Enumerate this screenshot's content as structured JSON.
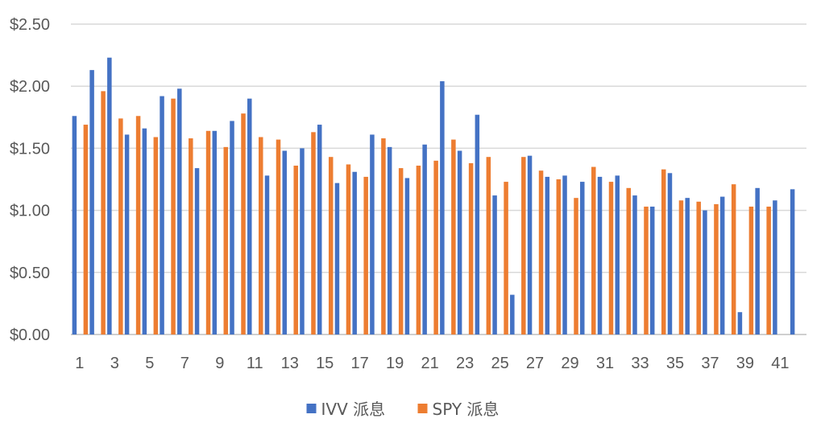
{
  "chart_data": {
    "type": "bar",
    "categories": [
      "1",
      "2",
      "3",
      "4",
      "5",
      "6",
      "7",
      "8",
      "9",
      "10",
      "11",
      "12",
      "13",
      "14",
      "15",
      "16",
      "17",
      "18",
      "19",
      "20",
      "21",
      "22",
      "23",
      "24",
      "25",
      "26",
      "27",
      "28",
      "29",
      "30",
      "31",
      "32",
      "33",
      "34",
      "35",
      "36",
      "37",
      "38",
      "39",
      "40",
      "41",
      "42"
    ],
    "x_tick_labels": [
      "1",
      "3",
      "5",
      "7",
      "9",
      "11",
      "13",
      "15",
      "17",
      "19",
      "21",
      "23",
      "25",
      "27",
      "29",
      "31",
      "33",
      "35",
      "37",
      "39",
      "41"
    ],
    "y_tick_labels": [
      "$0.00",
      "$0.50",
      "$1.00",
      "$1.50",
      "$2.00",
      "$2.50"
    ],
    "ylim": [
      0,
      2.5
    ],
    "grid": true,
    "legend_position": "bottom",
    "series": [
      {
        "name": "IVV 派息",
        "color": "#4472c4",
        "values": [
          1.76,
          2.13,
          2.23,
          1.61,
          1.66,
          1.92,
          1.98,
          1.34,
          1.64,
          1.72,
          1.9,
          1.28,
          1.48,
          1.5,
          1.69,
          1.22,
          1.31,
          1.61,
          1.51,
          1.26,
          1.53,
          2.04,
          1.48,
          1.77,
          1.12,
          0.32,
          1.44,
          1.27,
          1.28,
          1.23,
          1.27,
          1.28,
          1.12,
          1.03,
          1.3,
          1.1,
          1.0,
          1.11,
          0.18,
          1.18,
          1.08,
          1.17
        ]
      },
      {
        "name": "SPY 派息",
        "color": "#ed7d31",
        "values": [
          1.69,
          1.96,
          1.74,
          1.76,
          1.59,
          1.9,
          1.58,
          1.64,
          1.51,
          1.78,
          1.59,
          1.57,
          1.36,
          1.63,
          1.43,
          1.37,
          1.27,
          1.58,
          1.34,
          1.36,
          1.4,
          1.57,
          1.38,
          1.43,
          1.23,
          1.43,
          1.32,
          1.25,
          1.1,
          1.35,
          1.23,
          1.18,
          1.03,
          1.33,
          1.08,
          1.07,
          1.05,
          1.21,
          1.03,
          1.03,
          null,
          null
        ]
      }
    ]
  }
}
